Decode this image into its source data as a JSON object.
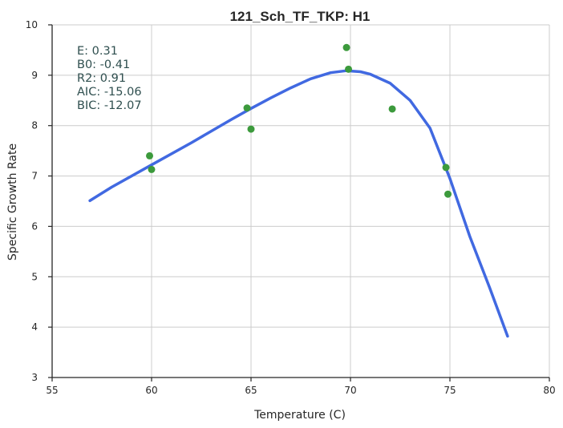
{
  "chart_data": {
    "type": "scatter",
    "title": "121_Sch_TF_TKP: H1",
    "xlabel": "Temperature (C)",
    "ylabel": "Specific Growth Rate",
    "xlim": [
      55,
      80
    ],
    "ylim": [
      3,
      10
    ],
    "xticks": [
      "55",
      "60",
      "65",
      "70",
      "75",
      "80"
    ],
    "yticks": [
      "3",
      "4",
      "5",
      "6",
      "7",
      "8",
      "9",
      "10"
    ],
    "grid": true,
    "annotation_lines": [
      "E:  0.31",
      "B0:  -0.41",
      "R2:  0.91",
      "AIC: -15.06",
      "BIC: -12.07"
    ],
    "series": [
      {
        "kind": "points",
        "color": "#3c9a3c",
        "points": [
          {
            "x": 59.9,
            "y": 7.4
          },
          {
            "x": 60.0,
            "y": 7.13
          },
          {
            "x": 64.8,
            "y": 8.35
          },
          {
            "x": 65.0,
            "y": 7.93
          },
          {
            "x": 69.8,
            "y": 9.55
          },
          {
            "x": 69.9,
            "y": 9.12
          },
          {
            "x": 72.1,
            "y": 8.33
          },
          {
            "x": 74.8,
            "y": 7.17
          },
          {
            "x": 74.9,
            "y": 6.64
          }
        ]
      },
      {
        "kind": "line",
        "color": "#4169e1",
        "points": [
          {
            "x": 56.9,
            "y": 6.51
          },
          {
            "x": 58.0,
            "y": 6.78
          },
          {
            "x": 60.0,
            "y": 7.22
          },
          {
            "x": 62.0,
            "y": 7.66
          },
          {
            "x": 64.0,
            "y": 8.12
          },
          {
            "x": 65.0,
            "y": 8.34
          },
          {
            "x": 66.0,
            "y": 8.55
          },
          {
            "x": 67.0,
            "y": 8.75
          },
          {
            "x": 68.0,
            "y": 8.93
          },
          {
            "x": 69.0,
            "y": 9.05
          },
          {
            "x": 69.8,
            "y": 9.09
          },
          {
            "x": 70.5,
            "y": 9.07
          },
          {
            "x": 71.0,
            "y": 9.02
          },
          {
            "x": 72.0,
            "y": 8.84
          },
          {
            "x": 73.0,
            "y": 8.5
          },
          {
            "x": 74.0,
            "y": 7.95
          },
          {
            "x": 75.0,
            "y": 6.95
          },
          {
            "x": 76.0,
            "y": 5.8
          },
          {
            "x": 77.0,
            "y": 4.78
          },
          {
            "x": 77.9,
            "y": 3.82
          }
        ]
      }
    ]
  }
}
